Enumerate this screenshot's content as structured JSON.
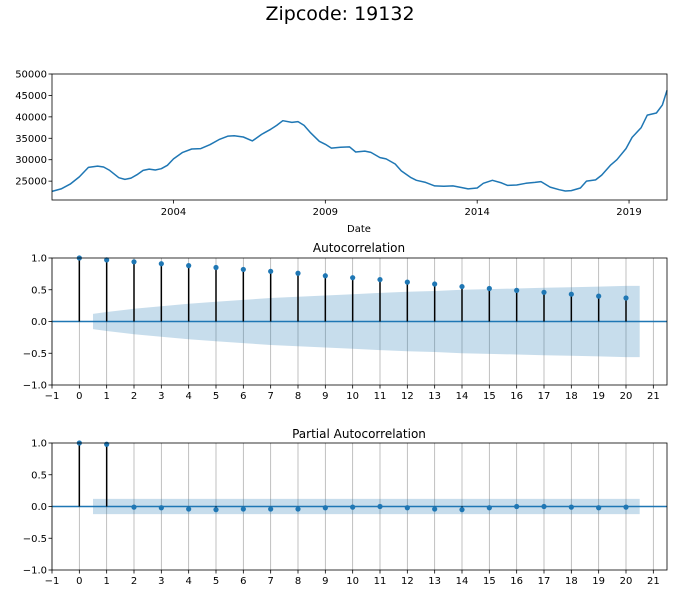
{
  "chart_data": [
    {
      "type": "line",
      "title": "Zipcode: 19132",
      "xlabel": "Date",
      "ylabel": "",
      "xlim": [
        2000.0,
        2020.25
      ],
      "ylim": [
        20600,
        50000
      ],
      "x_ticks": [
        {
          "value": 2004,
          "label": "2004"
        },
        {
          "value": 2009,
          "label": "2009"
        },
        {
          "value": 2014,
          "label": "2014"
        },
        {
          "value": 2019,
          "label": "2019"
        }
      ],
      "y_ticks": [
        {
          "value": 25000,
          "label": "25000"
        },
        {
          "value": 30000,
          "label": "30000"
        },
        {
          "value": 35000,
          "label": "35000"
        },
        {
          "value": 40000,
          "label": "40000"
        },
        {
          "value": 45000,
          "label": "45000"
        },
        {
          "value": 50000,
          "label": "50000"
        }
      ],
      "color": "#1f77b4",
      "series": [
        {
          "name": "value",
          "x": [
            2000.0,
            2000.3,
            2000.6,
            2000.9,
            2001.2,
            2001.5,
            2001.7,
            2001.9,
            2002.2,
            2002.4,
            2002.6,
            2002.8,
            2003.0,
            2003.2,
            2003.4,
            2003.6,
            2003.8,
            2004.0,
            2004.3,
            2004.6,
            2004.9,
            2005.2,
            2005.5,
            2005.8,
            2006.0,
            2006.3,
            2006.6,
            2006.9,
            2007.0,
            2007.2,
            2007.4,
            2007.6,
            2007.9,
            2008.1,
            2008.3,
            2008.5,
            2008.8,
            2009.0,
            2009.2,
            2009.5,
            2009.8,
            2010.0,
            2010.3,
            2010.5,
            2010.8,
            2011.0,
            2011.3,
            2011.5,
            2011.8,
            2012.0,
            2012.3,
            2012.6,
            2012.9,
            2013.2,
            2013.5,
            2013.7,
            2014.0,
            2014.2,
            2014.5,
            2014.8,
            2015.0,
            2015.3,
            2015.6,
            2015.9,
            2016.1,
            2016.4,
            2016.7,
            2016.9,
            2017.1,
            2017.4,
            2017.6,
            2017.9,
            2018.1,
            2018.4,
            2018.6,
            2018.9,
            2019.1,
            2019.4,
            2019.6,
            2019.9,
            2020.1,
            2020.25
          ],
          "y": [
            22600,
            23200,
            24300,
            26000,
            28200,
            28500,
            28300,
            27500,
            25800,
            25400,
            25700,
            26500,
            27500,
            27800,
            27600,
            27900,
            28700,
            30200,
            31700,
            32500,
            32600,
            33500,
            34700,
            35500,
            35600,
            35300,
            34400,
            35900,
            36300,
            37100,
            38000,
            39100,
            38700,
            38900,
            38000,
            36400,
            34300,
            33600,
            32700,
            32900,
            33000,
            31800,
            32000,
            31700,
            30500,
            30200,
            29000,
            27400,
            25900,
            25200,
            24700,
            23900,
            23800,
            23900,
            23500,
            23200,
            23400,
            24500,
            25200,
            24600,
            24000,
            24100,
            24500,
            24700,
            24900,
            23600,
            23000,
            22700,
            22800,
            23400,
            25000,
            25300,
            26400,
            28800,
            30000,
            32600,
            35200,
            37500,
            40400,
            40900,
            42800,
            46200
          ]
        }
      ]
    },
    {
      "type": "stem",
      "title": "Autocorrelation",
      "xlabel": "",
      "ylabel": "",
      "xlim": [
        -1,
        21.5
      ],
      "ylim": [
        -1.0,
        1.0
      ],
      "x_ticks": [
        {
          "value": -1,
          "label": "−1"
        },
        {
          "value": 0,
          "label": "0"
        },
        {
          "value": 1,
          "label": "1"
        },
        {
          "value": 2,
          "label": "2"
        },
        {
          "value": 3,
          "label": "3"
        },
        {
          "value": 4,
          "label": "4"
        },
        {
          "value": 5,
          "label": "5"
        },
        {
          "value": 6,
          "label": "6"
        },
        {
          "value": 7,
          "label": "7"
        },
        {
          "value": 8,
          "label": "8"
        },
        {
          "value": 9,
          "label": "9"
        },
        {
          "value": 10,
          "label": "10"
        },
        {
          "value": 11,
          "label": "11"
        },
        {
          "value": 12,
          "label": "12"
        },
        {
          "value": 13,
          "label": "13"
        },
        {
          "value": 14,
          "label": "14"
        },
        {
          "value": 15,
          "label": "15"
        },
        {
          "value": 16,
          "label": "16"
        },
        {
          "value": 17,
          "label": "17"
        },
        {
          "value": 18,
          "label": "18"
        },
        {
          "value": 19,
          "label": "19"
        },
        {
          "value": 20,
          "label": "20"
        },
        {
          "value": 21,
          "label": "21"
        }
      ],
      "y_ticks": [
        {
          "value": 1.0,
          "label": "1.0"
        },
        {
          "value": 0.5,
          "label": "0.5"
        },
        {
          "value": 0.0,
          "label": "0.0"
        },
        {
          "value": -0.5,
          "label": "−0.5"
        },
        {
          "value": -1.0,
          "label": "−1.0"
        }
      ],
      "lags": [
        0,
        1,
        2,
        3,
        4,
        5,
        6,
        7,
        8,
        9,
        10,
        11,
        12,
        13,
        14,
        15,
        16,
        17,
        18,
        19,
        20
      ],
      "values": [
        1.0,
        0.97,
        0.94,
        0.91,
        0.88,
        0.85,
        0.82,
        0.79,
        0.76,
        0.72,
        0.69,
        0.66,
        0.62,
        0.59,
        0.55,
        0.52,
        0.49,
        0.46,
        0.43,
        0.4,
        0.37
      ],
      "confidence_band": {
        "lags": [
          0.5,
          1,
          2,
          3,
          4,
          5,
          6,
          7,
          8,
          9,
          10,
          11,
          12,
          13,
          14,
          15,
          16,
          17,
          18,
          19,
          20,
          20.5
        ],
        "upper": [
          0.12,
          0.15,
          0.2,
          0.24,
          0.28,
          0.31,
          0.34,
          0.37,
          0.39,
          0.41,
          0.43,
          0.45,
          0.47,
          0.48,
          0.5,
          0.51,
          0.52,
          0.53,
          0.54,
          0.55,
          0.56,
          0.56
        ],
        "lower": [
          -0.12,
          -0.15,
          -0.2,
          -0.24,
          -0.28,
          -0.31,
          -0.34,
          -0.37,
          -0.39,
          -0.41,
          -0.43,
          -0.45,
          -0.47,
          -0.48,
          -0.5,
          -0.51,
          -0.52,
          -0.53,
          -0.54,
          -0.55,
          -0.56,
          -0.56
        ]
      },
      "grid": "vertical"
    },
    {
      "type": "stem",
      "title": "Partial Autocorrelation",
      "xlabel": "",
      "ylabel": "",
      "xlim": [
        -1,
        21.5
      ],
      "ylim": [
        -1.0,
        1.0
      ],
      "x_ticks": [
        {
          "value": -1,
          "label": "−1"
        },
        {
          "value": 0,
          "label": "0"
        },
        {
          "value": 1,
          "label": "1"
        },
        {
          "value": 2,
          "label": "2"
        },
        {
          "value": 3,
          "label": "3"
        },
        {
          "value": 4,
          "label": "4"
        },
        {
          "value": 5,
          "label": "5"
        },
        {
          "value": 6,
          "label": "6"
        },
        {
          "value": 7,
          "label": "7"
        },
        {
          "value": 8,
          "label": "8"
        },
        {
          "value": 9,
          "label": "9"
        },
        {
          "value": 10,
          "label": "10"
        },
        {
          "value": 11,
          "label": "11"
        },
        {
          "value": 12,
          "label": "12"
        },
        {
          "value": 13,
          "label": "13"
        },
        {
          "value": 14,
          "label": "14"
        },
        {
          "value": 15,
          "label": "15"
        },
        {
          "value": 16,
          "label": "16"
        },
        {
          "value": 17,
          "label": "17"
        },
        {
          "value": 18,
          "label": "18"
        },
        {
          "value": 19,
          "label": "19"
        },
        {
          "value": 20,
          "label": "20"
        },
        {
          "value": 21,
          "label": "21"
        }
      ],
      "y_ticks": [
        {
          "value": 1.0,
          "label": "1.0"
        },
        {
          "value": 0.5,
          "label": "0.5"
        },
        {
          "value": 0.0,
          "label": "0.0"
        },
        {
          "value": -0.5,
          "label": "−0.5"
        },
        {
          "value": -1.0,
          "label": "−1.0"
        }
      ],
      "lags": [
        0,
        1,
        2,
        3,
        4,
        5,
        6,
        7,
        8,
        9,
        10,
        11,
        12,
        13,
        14,
        15,
        16,
        17,
        18,
        19,
        20
      ],
      "values": [
        1.0,
        0.98,
        -0.01,
        -0.02,
        -0.04,
        -0.05,
        -0.04,
        -0.04,
        -0.04,
        -0.02,
        -0.01,
        0.0,
        -0.02,
        -0.04,
        -0.05,
        -0.02,
        0.0,
        0.0,
        -0.01,
        -0.02,
        -0.01
      ],
      "confidence_band": {
        "lags": [
          0.5,
          20.5
        ],
        "upper": [
          0.12,
          0.12
        ],
        "lower": [
          -0.12,
          -0.12
        ]
      },
      "grid": "vertical"
    }
  ]
}
